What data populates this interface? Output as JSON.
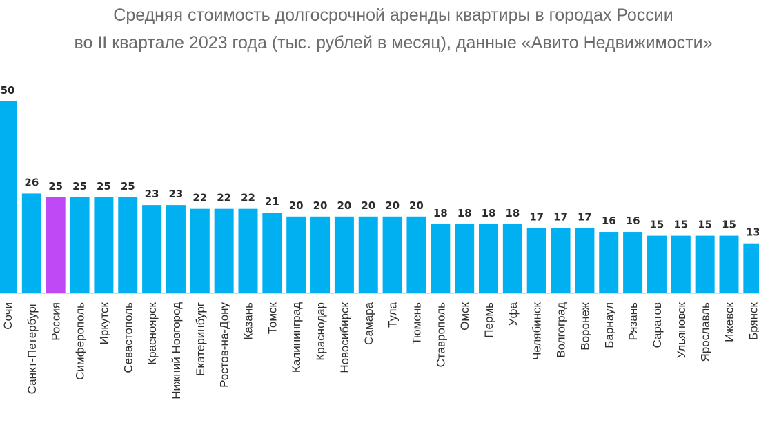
{
  "chart_data": {
    "type": "bar",
    "title_lines": [
      "Средняя стоимость долгосрочной аренды квартиры в городах России",
      "во II квартале 2023 года (тыс. рублей в месяц), данные «Авито Недвижимости»"
    ],
    "xlabel": "",
    "ylabel": "",
    "ylim": [
      0,
      50
    ],
    "grid": false,
    "legend": "none",
    "bar_color": "#00B0F0",
    "highlight_color": "#BF4AF5",
    "highlight_category": "Россия",
    "label_color": "#2b2b2b",
    "title_color": "#6b6b6b",
    "categories": [
      "Сочи",
      "Санкт-Петербург",
      "Россия",
      "Симферополь",
      "Иркутск",
      "Севастополь",
      "Красноярск",
      "Нижний Новгород",
      "Екатеринбург",
      "Ростов-на-Дону",
      "Казань",
      "Томск",
      "Калининград",
      "Краснодар",
      "Новосибирск",
      "Самара",
      "Тула",
      "Тюмень",
      "Ставрополь",
      "Омск",
      "Пермь",
      "Уфа",
      "Челябинск",
      "Волгоград",
      "Воронеж",
      "Барнаул",
      "Рязань",
      "Саратов",
      "Ульяновск",
      "Ярославль",
      "Ижевск",
      "Брянск"
    ],
    "values": [
      50,
      26,
      25,
      25,
      25,
      25,
      23,
      23,
      22,
      22,
      22,
      21,
      20,
      20,
      20,
      20,
      20,
      20,
      18,
      18,
      18,
      18,
      17,
      17,
      17,
      16,
      16,
      15,
      15,
      15,
      15,
      13
    ]
  }
}
